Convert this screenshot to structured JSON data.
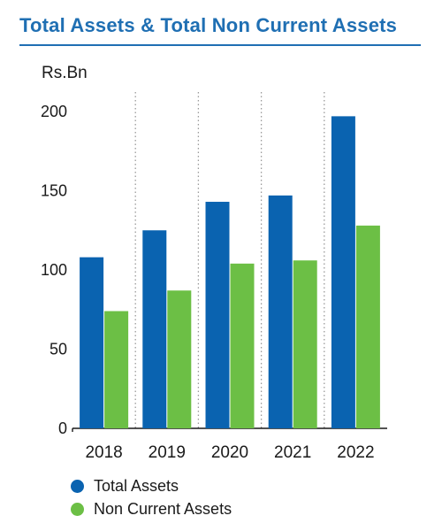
{
  "title": "Total Assets & Total Non Current Assets",
  "chart_data": {
    "type": "bar",
    "title": "Total Assets & Total Non Current Assets",
    "ylabel": "Rs.Bn",
    "xlabel": "",
    "categories": [
      "2018",
      "2019",
      "2020",
      "2021",
      "2022"
    ],
    "ylim": [
      0,
      200
    ],
    "yticks": [
      0,
      50,
      100,
      150,
      200
    ],
    "grid": "vertical dotted separators between categories",
    "legend_position": "bottom-left",
    "series": [
      {
        "name": "Total Assets",
        "color": "#0a63b0",
        "values": [
          108,
          125,
          143,
          147,
          197
        ]
      },
      {
        "name": "Non Current Assets",
        "color": "#6cbf45",
        "values": [
          74,
          87,
          104,
          106,
          128
        ]
      }
    ]
  }
}
